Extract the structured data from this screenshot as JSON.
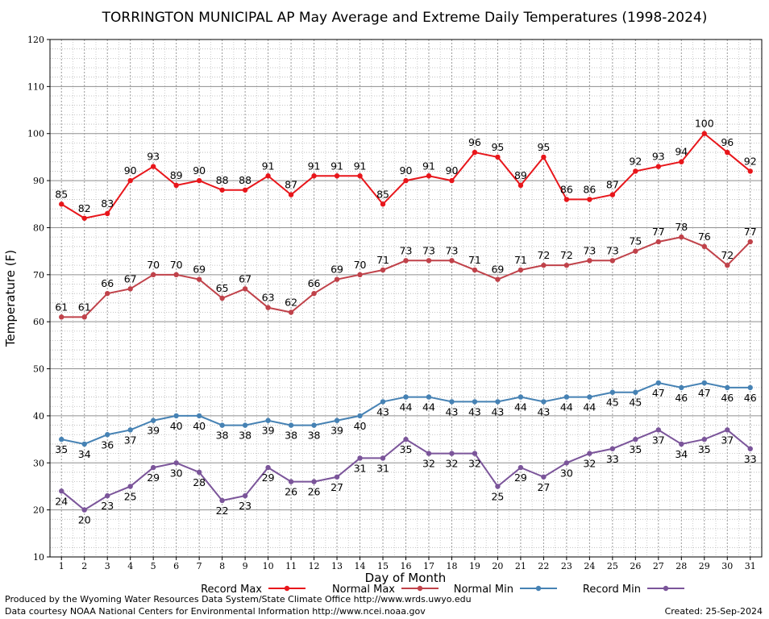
{
  "chart_data": {
    "type": "line",
    "title": "TORRINGTON MUNICIPAL AP May Average and Extreme Daily Temperatures (1998-2024)",
    "xlabel": "Day of Month",
    "ylabel": "Temperature (F)",
    "ylim": [
      10,
      120
    ],
    "yticks": [
      10,
      20,
      30,
      40,
      50,
      60,
      70,
      80,
      90,
      100,
      110,
      120
    ],
    "x": [
      1,
      2,
      3,
      4,
      5,
      6,
      7,
      8,
      9,
      10,
      11,
      12,
      13,
      14,
      15,
      16,
      17,
      18,
      19,
      20,
      21,
      22,
      23,
      24,
      25,
      26,
      27,
      28,
      29,
      30,
      31
    ],
    "grid": true,
    "legend_position": "bottom",
    "series": [
      {
        "name": "Record Max",
        "color": "#e8161b",
        "label_pos": "above",
        "values": [
          85,
          82,
          83,
          90,
          93,
          89,
          90,
          88,
          88,
          91,
          87,
          91,
          91,
          91,
          85,
          90,
          91,
          90,
          96,
          95,
          89,
          95,
          86,
          86,
          87,
          92,
          93,
          94,
          100,
          96,
          92
        ]
      },
      {
        "name": "Normal Max",
        "color": "#c0424a",
        "label_pos": "above",
        "values": [
          61,
          61,
          66,
          67,
          70,
          70,
          69,
          65,
          67,
          63,
          62,
          66,
          69,
          70,
          71,
          73,
          73,
          73,
          71,
          69,
          71,
          72,
          72,
          73,
          73,
          75,
          77,
          78,
          76,
          72,
          77
        ]
      },
      {
        "name": "Normal Min",
        "color": "#4682b4",
        "label_pos": "below",
        "values": [
          35,
          34,
          36,
          37,
          39,
          40,
          40,
          38,
          38,
          39,
          38,
          38,
          39,
          40,
          43,
          44,
          44,
          43,
          43,
          43,
          44,
          43,
          44,
          44,
          45,
          45,
          47,
          46,
          47,
          46,
          46
        ]
      },
      {
        "name": "Record Min",
        "color": "#7b559a",
        "label_pos": "below",
        "values": [
          24,
          20,
          23,
          25,
          29,
          30,
          28,
          22,
          23,
          29,
          26,
          26,
          27,
          31,
          31,
          35,
          32,
          32,
          32,
          25,
          29,
          27,
          30,
          32,
          33,
          35,
          37,
          34,
          35,
          37,
          33
        ]
      }
    ]
  },
  "footer": {
    "produced_by": "Produced by the Wyoming Water Resources Data System/State Climate Office http://www.wrds.uwyo.edu",
    "courtesy": "Data courtesy NOAA National Centers for Environmental Information http://www.ncei.noaa.gov",
    "created": "Created: 25-Sep-2024"
  }
}
